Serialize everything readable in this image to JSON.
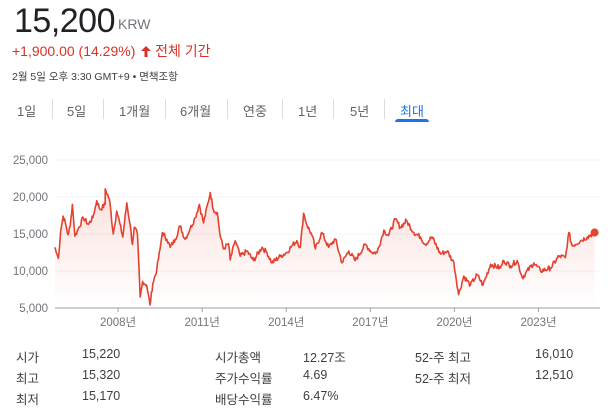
{
  "quote": {
    "price": "15,200",
    "currency": "KRW",
    "change": "+1,900.00 (14.29%)",
    "change_arrow": "arrow-up-icon",
    "period": "전체 기간",
    "timestamp": "2월 5일 오후 3:30 GMT+9 • 면책조항"
  },
  "tabs": [
    {
      "label": "1일"
    },
    {
      "label": "5일"
    },
    {
      "label": "1개월"
    },
    {
      "label": "6개월"
    },
    {
      "label": "연중"
    },
    {
      "label": "1년"
    },
    {
      "label": "5년"
    },
    {
      "label": "최대",
      "selected": true
    }
  ],
  "colors": {
    "line": "#e4412f",
    "accent": "#1a73e8",
    "negative": "#d93025"
  },
  "chart_data": {
    "type": "line",
    "ylim": [
      5000,
      25000
    ],
    "yticks": [
      {
        "value": 25000,
        "label": "25,000"
      },
      {
        "value": 20000,
        "label": "20,000"
      },
      {
        "value": 15000,
        "label": "15,000"
      },
      {
        "value": 10000,
        "label": "10,000"
      },
      {
        "value": 5000,
        "label": "5,000"
      }
    ],
    "xlim": [
      2005.75,
      2025.05
    ],
    "xticks": [
      {
        "value": 2008,
        "label": "2008년"
      },
      {
        "value": 2011,
        "label": "2011년"
      },
      {
        "value": 2014,
        "label": "2014년"
      },
      {
        "value": 2017,
        "label": "2017년"
      },
      {
        "value": 2020,
        "label": "2020년"
      },
      {
        "value": 2023,
        "label": "2023년"
      }
    ],
    "points": [
      [
        2005.75,
        13200
      ],
      [
        2005.79,
        12600
      ],
      [
        2005.87,
        11700
      ],
      [
        2005.95,
        15300
      ],
      [
        2006.04,
        17400
      ],
      [
        2006.12,
        16500
      ],
      [
        2006.21,
        14900
      ],
      [
        2006.29,
        16000
      ],
      [
        2006.37,
        19000
      ],
      [
        2006.46,
        14700
      ],
      [
        2006.58,
        15700
      ],
      [
        2006.76,
        17200
      ],
      [
        2006.94,
        16300
      ],
      [
        2007.1,
        17200
      ],
      [
        2007.24,
        19500
      ],
      [
        2007.36,
        18300
      ],
      [
        2007.54,
        19000
      ],
      [
        2007.54,
        21100
      ],
      [
        2007.69,
        19700
      ],
      [
        2007.83,
        15000
      ],
      [
        2007.95,
        18100
      ],
      [
        2008.07,
        16300
      ],
      [
        2008.17,
        14600
      ],
      [
        2008.31,
        19200
      ],
      [
        2008.43,
        16300
      ],
      [
        2008.51,
        13600
      ],
      [
        2008.58,
        15900
      ],
      [
        2008.69,
        15000
      ],
      [
        2008.79,
        6500
      ],
      [
        2008.88,
        8600
      ],
      [
        2009.02,
        8100
      ],
      [
        2009.14,
        5400
      ],
      [
        2009.24,
        8300
      ],
      [
        2009.38,
        10200
      ],
      [
        2009.5,
        13000
      ],
      [
        2009.58,
        15200
      ],
      [
        2009.74,
        14300
      ],
      [
        2009.86,
        13200
      ],
      [
        2010.04,
        14300
      ],
      [
        2010.21,
        16100
      ],
      [
        2010.39,
        14300
      ],
      [
        2010.57,
        15700
      ],
      [
        2010.75,
        17200
      ],
      [
        2010.9,
        19000
      ],
      [
        2011.05,
        16500
      ],
      [
        2011.29,
        20600
      ],
      [
        2011.4,
        18300
      ],
      [
        2011.54,
        17900
      ],
      [
        2011.64,
        14800
      ],
      [
        2011.76,
        13000
      ],
      [
        2011.94,
        13700
      ],
      [
        2012.0,
        11500
      ],
      [
        2012.18,
        14100
      ],
      [
        2012.36,
        12000
      ],
      [
        2012.6,
        12700
      ],
      [
        2012.83,
        11400
      ],
      [
        2013.13,
        13200
      ],
      [
        2013.31,
        12500
      ],
      [
        2013.49,
        11100
      ],
      [
        2013.79,
        12000
      ],
      [
        2014.02,
        12500
      ],
      [
        2014.2,
        13400
      ],
      [
        2014.38,
        14100
      ],
      [
        2014.5,
        13200
      ],
      [
        2014.62,
        17800
      ],
      [
        2014.74,
        16200
      ],
      [
        2014.92,
        14800
      ],
      [
        2015.04,
        13000
      ],
      [
        2015.27,
        15200
      ],
      [
        2015.51,
        13200
      ],
      [
        2015.75,
        14300
      ],
      [
        2015.99,
        11100
      ],
      [
        2016.23,
        12700
      ],
      [
        2016.46,
        11400
      ],
      [
        2016.82,
        13600
      ],
      [
        2017.06,
        12500
      ],
      [
        2017.24,
        12500
      ],
      [
        2017.48,
        15500
      ],
      [
        2017.65,
        14800
      ],
      [
        2017.89,
        17000
      ],
      [
        2018.07,
        15900
      ],
      [
        2018.29,
        16800
      ],
      [
        2018.55,
        15200
      ],
      [
        2018.79,
        14600
      ],
      [
        2018.96,
        13600
      ],
      [
        2019.2,
        14600
      ],
      [
        2019.5,
        12300
      ],
      [
        2019.74,
        12700
      ],
      [
        2019.98,
        11100
      ],
      [
        2020.15,
        6800
      ],
      [
        2020.33,
        9300
      ],
      [
        2020.57,
        8100
      ],
      [
        2020.81,
        9500
      ],
      [
        2021.02,
        8100
      ],
      [
        2021.29,
        10900
      ],
      [
        2021.64,
        10400
      ],
      [
        2021.76,
        11400
      ],
      [
        2022.0,
        10700
      ],
      [
        2022.24,
        11400
      ],
      [
        2022.42,
        9100
      ],
      [
        2022.83,
        11100
      ],
      [
        2023.07,
        10000
      ],
      [
        2023.43,
        10400
      ],
      [
        2023.73,
        12000
      ],
      [
        2023.96,
        11800
      ],
      [
        2024.08,
        15200
      ],
      [
        2024.2,
        13400
      ],
      [
        2024.5,
        14100
      ],
      [
        2024.74,
        14600
      ],
      [
        2025.0,
        15200
      ]
    ]
  },
  "stats": [
    {
      "label": "시가",
      "value": "15,220"
    },
    {
      "label": "최고",
      "value": "15,320"
    },
    {
      "label": "최저",
      "value": "15,170"
    },
    {
      "label": "시가총액",
      "value": "12.27조"
    },
    {
      "label": "주가수익률",
      "value": "4.69"
    },
    {
      "label": "배당수익률",
      "value": "6.47%"
    },
    {
      "label": "52-주 최고",
      "value": "16,010"
    },
    {
      "label": "52-주 최저",
      "value": "12,510"
    }
  ]
}
